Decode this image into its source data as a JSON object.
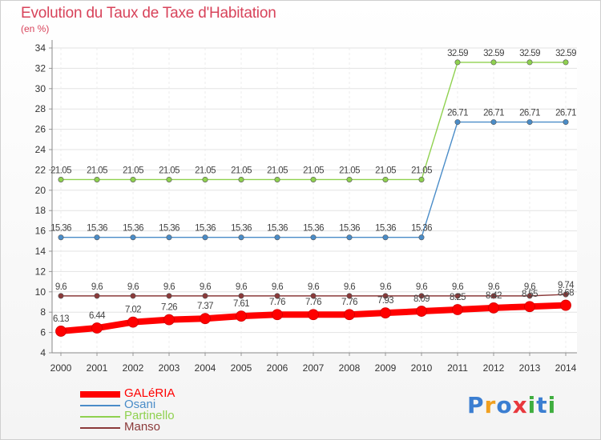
{
  "title": "Evolution du Taux de Taxe d'Habitation",
  "subtitle": "(en %)",
  "logo": {
    "letters": [
      "P",
      "r",
      "o",
      "x",
      "i",
      "t",
      "i"
    ],
    "colors": [
      "#3b7ed1",
      "#f0a020",
      "#3b7ed1",
      "#e8383d",
      "#3fae3f",
      "#3b7ed1",
      "#3fae3f"
    ]
  },
  "chart_data": {
    "type": "line",
    "title": "Evolution du Taux de Taxe d'Habitation",
    "ylabel": "(en %)",
    "xlabel": "",
    "x": [
      "2000",
      "2001",
      "2002",
      "2003",
      "2004",
      "2005",
      "2006",
      "2007",
      "2008",
      "2009",
      "2010",
      "2011",
      "2012",
      "2013",
      "2014"
    ],
    "ylim": [
      4,
      34
    ],
    "yticks": [
      4,
      6,
      8,
      10,
      12,
      14,
      16,
      18,
      20,
      22,
      24,
      26,
      28,
      30,
      32,
      34
    ],
    "ytick_labels": [
      "4",
      "6",
      "8",
      "10",
      "12",
      "14",
      "16",
      "18",
      "20",
      "22",
      "24",
      "26",
      "28",
      "30",
      "32",
      "34"
    ],
    "grid": true,
    "legend_position": "bottom-left",
    "series": [
      {
        "name": "GALéRIA",
        "color": "#ff0000",
        "values": [
          6.13,
          6.44,
          7.02,
          7.26,
          7.37,
          7.61,
          7.76,
          7.76,
          7.76,
          7.93,
          8.09,
          8.25,
          8.42,
          8.55,
          8.68
        ],
        "labels": [
          "6.13",
          "6.44",
          "7.02",
          "7.26",
          "7.37",
          "7.61",
          "7.76",
          "7.76",
          "7.76",
          "7.93",
          "8.09",
          "8.25",
          "8.42",
          "8.55",
          "8.68"
        ]
      },
      {
        "name": "Osani",
        "color": "#4a8cc8",
        "values": [
          15.36,
          15.36,
          15.36,
          15.36,
          15.36,
          15.36,
          15.36,
          15.36,
          15.36,
          15.36,
          15.36,
          26.71,
          26.71,
          26.71,
          26.71
        ],
        "labels": [
          "15.36",
          "15.36",
          "15.36",
          "15.36",
          "15.36",
          "15.36",
          "15.36",
          "15.36",
          "15.36",
          "15.36",
          "15.36",
          "26.71",
          "26.71",
          "26.71",
          "26.71"
        ]
      },
      {
        "name": "Partinello",
        "color": "#8fd14f",
        "values": [
          21.05,
          21.05,
          21.05,
          21.05,
          21.05,
          21.05,
          21.05,
          21.05,
          21.05,
          21.05,
          21.05,
          32.59,
          32.59,
          32.59,
          32.59
        ],
        "labels": [
          "21.05",
          "21.05",
          "21.05",
          "21.05",
          "21.05",
          "21.05",
          "21.05",
          "21.05",
          "21.05",
          "21.05",
          "21.05",
          "32.59",
          "32.59",
          "32.59",
          "32.59"
        ]
      },
      {
        "name": "Manso",
        "color": "#8b3a3a",
        "values": [
          9.6,
          9.6,
          9.6,
          9.6,
          9.6,
          9.6,
          9.6,
          9.6,
          9.6,
          9.6,
          9.6,
          9.6,
          9.6,
          9.6,
          9.74
        ],
        "labels": [
          "9.6",
          "9.6",
          "9.6",
          "9.6",
          "9.6",
          "9.6",
          "9.6",
          "9.6",
          "9.6",
          "9.6",
          "9.6",
          "9.6",
          "9.6",
          "9.6",
          "9.74"
        ]
      }
    ]
  }
}
